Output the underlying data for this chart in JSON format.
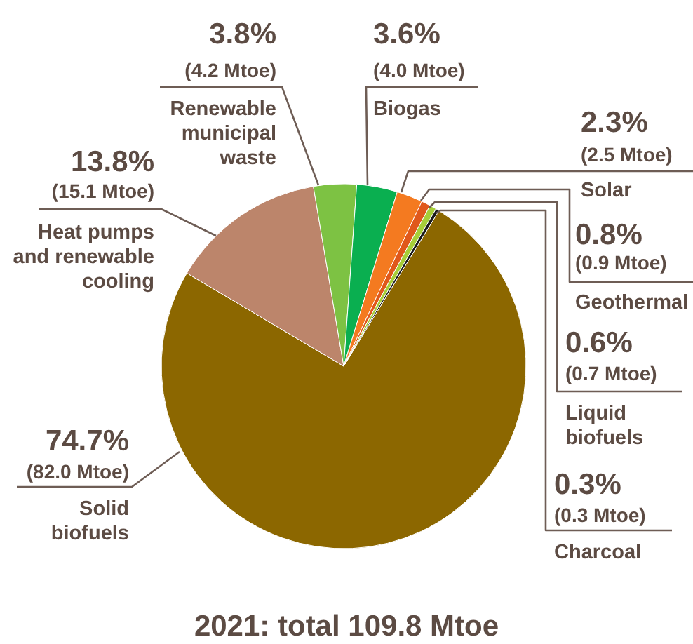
{
  "chart_data": {
    "type": "pie",
    "title": "2021: total 109.8 Mtoe",
    "categories": [
      "Solid biofuels",
      "Heat pumps and renewable cooling",
      "Renewable municipal waste",
      "Biogas",
      "Solar",
      "Geothermal",
      "Liquid biofuels",
      "Charcoal"
    ],
    "values": [
      74.7,
      13.8,
      3.8,
      3.6,
      2.3,
      0.8,
      0.6,
      0.3
    ],
    "colors": [
      "#8c6700",
      "#bc856b",
      "#7dc243",
      "#0aaf50",
      "#f47a20",
      "#e0581b",
      "#a6ce39",
      "#1a1a1a"
    ],
    "value_labels": [
      "74.7%\n(82.0 Mtoe)",
      "13.8%\n(15.1 Mtoe)",
      "3.8%\n(4.2 Mtoe)",
      "3.6%\n(4.0 Mtoe)",
      "2.3%\n(2.5 Mtoe)",
      "0.8%\n(0.9 Mtoe)",
      "0.6%\n(0.7 Mtoe)",
      "0.3%\n(0.3 Mtoe)"
    ]
  }
}
